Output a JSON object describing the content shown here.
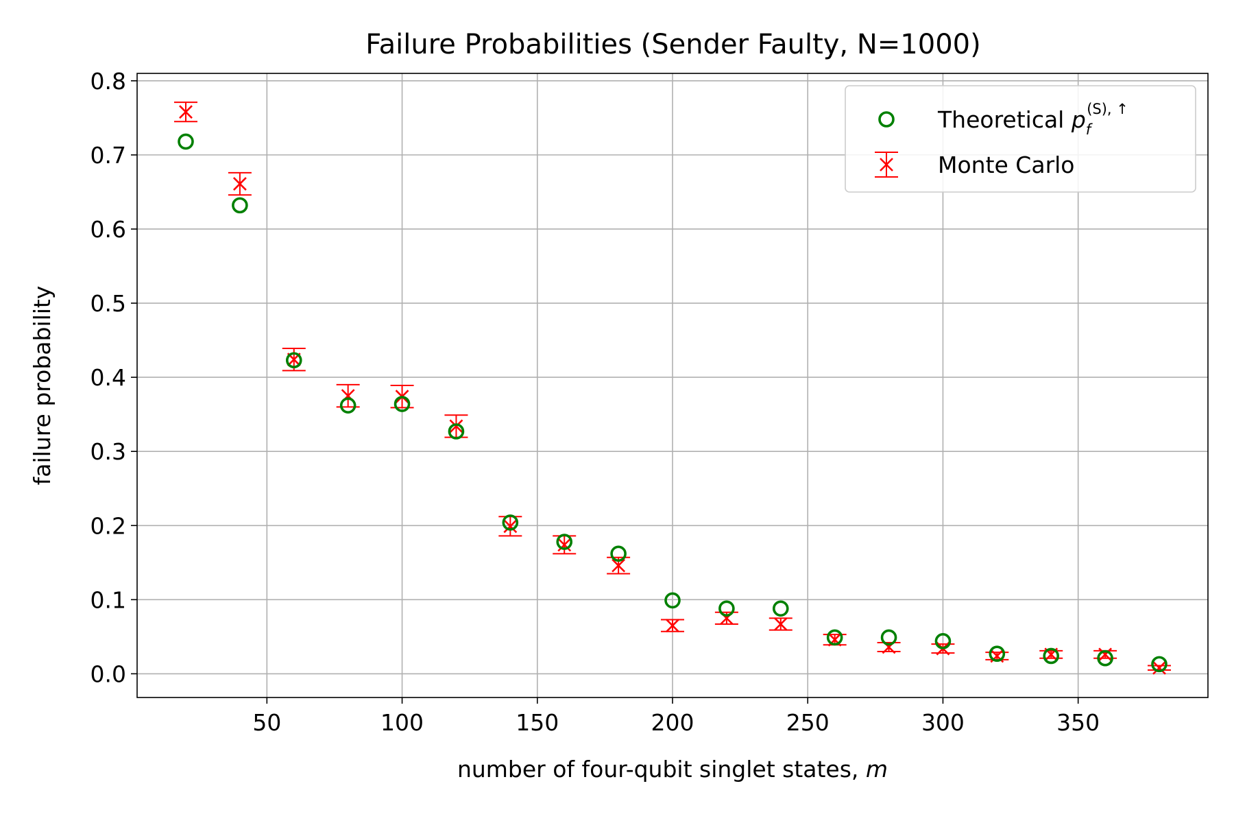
{
  "chart_data": {
    "type": "scatter",
    "title": "Failure Probabilities (Sender Faulty, N=1000)",
    "xlabel": "number of four-qubit singlet states, ",
    "xlabel_var": "m",
    "ylabel": "failure probability",
    "xlim": [
      2,
      398
    ],
    "ylim": [
      -0.032,
      0.81
    ],
    "xticks": [
      50,
      100,
      150,
      200,
      250,
      300,
      350
    ],
    "yticks": [
      0.0,
      0.1,
      0.2,
      0.3,
      0.4,
      0.5,
      0.6,
      0.7,
      0.8
    ],
    "ytick_labels": [
      "0.0",
      "0.1",
      "0.2",
      "0.3",
      "0.4",
      "0.5",
      "0.6",
      "0.7",
      "0.8"
    ],
    "grid": true,
    "legend_position": "top-right",
    "legend": {
      "theoretical_prefix": "Theoretical ",
      "theoretical_symbol": "p",
      "theoretical_sub": "f",
      "theoretical_sup": "(S), ↑",
      "monte_carlo": "Monte Carlo"
    },
    "x": [
      20,
      40,
      60,
      80,
      100,
      120,
      140,
      160,
      180,
      200,
      220,
      240,
      260,
      280,
      300,
      320,
      340,
      360,
      380
    ],
    "series": [
      {
        "name": "Theoretical",
        "marker": "circle-open",
        "color": "#008000",
        "values": [
          0.718,
          0.632,
          0.423,
          0.362,
          0.364,
          0.327,
          0.204,
          0.178,
          0.162,
          0.099,
          0.088,
          0.088,
          0.049,
          0.049,
          0.044,
          0.027,
          0.024,
          0.021,
          0.013
        ]
      },
      {
        "name": "Monte Carlo",
        "marker": "x",
        "color": "#ff0000",
        "values": [
          0.758,
          0.661,
          0.424,
          0.375,
          0.374,
          0.334,
          0.199,
          0.174,
          0.146,
          0.065,
          0.075,
          0.067,
          0.046,
          0.036,
          0.034,
          0.024,
          0.026,
          0.026,
          0.008
        ],
        "error": [
          0.013,
          0.015,
          0.015,
          0.015,
          0.015,
          0.015,
          0.013,
          0.012,
          0.011,
          0.008,
          0.008,
          0.008,
          0.007,
          0.006,
          0.006,
          0.005,
          0.005,
          0.005,
          0.003
        ]
      }
    ]
  }
}
